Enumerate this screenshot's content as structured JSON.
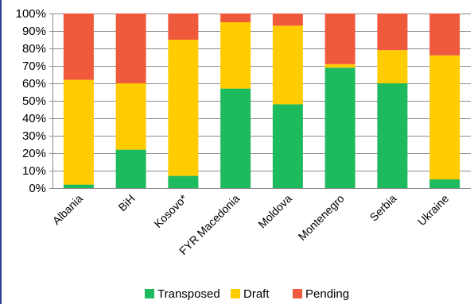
{
  "chart_data": {
    "type": "bar",
    "stacked": true,
    "categories": [
      "Albania",
      "BiH",
      "Kosovo*",
      "FYR Macedonia",
      "Moldova",
      "Montenegro",
      "Serbia",
      "Ukraine"
    ],
    "series": [
      {
        "name": "Transposed",
        "color": "#1eba5e",
        "values": [
          2,
          22,
          7,
          57,
          48,
          69,
          60,
          5
        ]
      },
      {
        "name": "Draft",
        "color": "#ffcc00",
        "values": [
          60,
          38,
          78,
          38,
          45,
          2,
          19,
          71
        ]
      },
      {
        "name": "Pending",
        "color": "#f05a3c",
        "values": [
          38,
          40,
          15,
          5,
          7,
          29,
          21,
          24
        ]
      }
    ],
    "y_ticks": [
      "0%",
      "10%",
      "20%",
      "30%",
      "40%",
      "50%",
      "60%",
      "70%",
      "80%",
      "90%",
      "100%"
    ],
    "ylim": [
      0,
      100
    ],
    "grid": true,
    "legend_position": "bottom",
    "frame_color": "#2a3d8f"
  }
}
